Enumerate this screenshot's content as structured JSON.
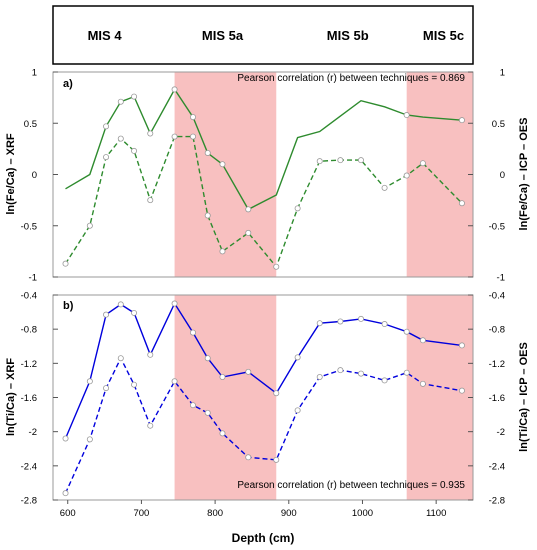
{
  "chart_data": {
    "type": "line",
    "xlabel": "Depth (cm)",
    "xlim": [
      580,
      1150
    ],
    "xticks": [
      600,
      700,
      800,
      900,
      1000,
      1100
    ],
    "colors": {
      "fe": "#2e8b2e",
      "ti": "#0000dd",
      "shade": "#f8c0c0",
      "marker_fill": "#ffffff",
      "marker_stroke": "#9a9a9a"
    },
    "stages": [
      {
        "label": "MIS 4",
        "center": 650
      },
      {
        "label": "MIS 5a",
        "center": 810
      },
      {
        "label": "MIS 5b",
        "center": 980
      },
      {
        "label": "MIS 5c",
        "center": 1110
      }
    ],
    "shaded_intervals": [
      [
        745,
        883
      ],
      [
        1060,
        1150
      ]
    ],
    "panels": [
      {
        "id": "a",
        "label": "a)",
        "ylim": [
          -1,
          1
        ],
        "yticks": [
          1,
          0.5,
          0,
          -0.5,
          -1
        ],
        "ylabel_left": "ln(Fe/Ca) – XRF",
        "ylabel_right": "ln(Fe/Ca) – ICP – OES",
        "annotation": "Pearson correlation (r) between techniques = 0.869",
        "annotation_position": "top-right",
        "color_key": "fe",
        "series": [
          {
            "style": "solid",
            "markers": [
              false,
              false,
              true,
              true,
              true,
              true,
              true,
              true,
              true,
              true,
              true,
              false,
              false,
              false,
              false,
              false,
              false,
              true,
              false,
              true
            ],
            "x": [
              597,
              630,
              652,
              672,
              690,
              712,
              745,
              770,
              790,
              810,
              845,
              883,
              912,
              942,
              970,
              998,
              1030,
              1060,
              1082,
              1135
            ],
            "y": [
              -0.14,
              0.0,
              0.47,
              0.71,
              0.76,
              0.4,
              0.83,
              0.56,
              0.21,
              0.1,
              -0.34,
              -0.2,
              0.36,
              0.42,
              0.57,
              0.72,
              0.66,
              0.58,
              0.56,
              0.53
            ]
          },
          {
            "style": "dashed",
            "markers": true,
            "x": [
              597,
              630,
              652,
              672,
              690,
              712,
              745,
              770,
              790,
              810,
              845,
              883,
              912,
              942,
              970,
              998,
              1030,
              1060,
              1082,
              1135
            ],
            "y": [
              -0.87,
              -0.5,
              0.17,
              0.35,
              0.23,
              -0.25,
              0.37,
              0.37,
              -0.4,
              -0.75,
              -0.57,
              -0.9,
              -0.33,
              0.13,
              0.14,
              0.14,
              -0.13,
              -0.01,
              0.11,
              -0.28
            ]
          }
        ]
      },
      {
        "id": "b",
        "label": "b)",
        "ylim": [
          -2.8,
          -0.4
        ],
        "yticks": [
          -0.4,
          -0.8,
          -1.2,
          -1.6,
          -2,
          -2.4,
          -2.8
        ],
        "ylabel_left": "ln(Ti/Ca) – XRF",
        "ylabel_right": "ln(Ti/Ca) – ICP – OES",
        "annotation": "Pearson correlation (r) between techniques = 0.935",
        "annotation_position": "bottom-right",
        "color_key": "ti",
        "series": [
          {
            "style": "solid",
            "markers": true,
            "x": [
              597,
              630,
              652,
              672,
              690,
              712,
              745,
              770,
              790,
              810,
              845,
              883,
              912,
              942,
              970,
              998,
              1030,
              1060,
              1082,
              1135
            ],
            "y": [
              -2.08,
              -1.41,
              -0.63,
              -0.51,
              -0.61,
              -1.1,
              -0.5,
              -0.84,
              -1.14,
              -1.36,
              -1.3,
              -1.55,
              -1.13,
              -0.73,
              -0.71,
              -0.68,
              -0.74,
              -0.83,
              -0.93,
              -0.99
            ]
          },
          {
            "style": "dashed",
            "markers": true,
            "x": [
              597,
              630,
              652,
              672,
              690,
              712,
              745,
              770,
              790,
              810,
              845,
              883,
              912,
              942,
              970,
              998,
              1030,
              1060,
              1082,
              1135
            ],
            "y": [
              -2.72,
              -2.09,
              -1.49,
              -1.14,
              -1.45,
              -1.93,
              -1.41,
              -1.69,
              -1.78,
              -2.02,
              -2.3,
              -2.33,
              -1.75,
              -1.36,
              -1.28,
              -1.32,
              -1.4,
              -1.31,
              -1.44,
              -1.52
            ]
          }
        ]
      }
    ]
  }
}
